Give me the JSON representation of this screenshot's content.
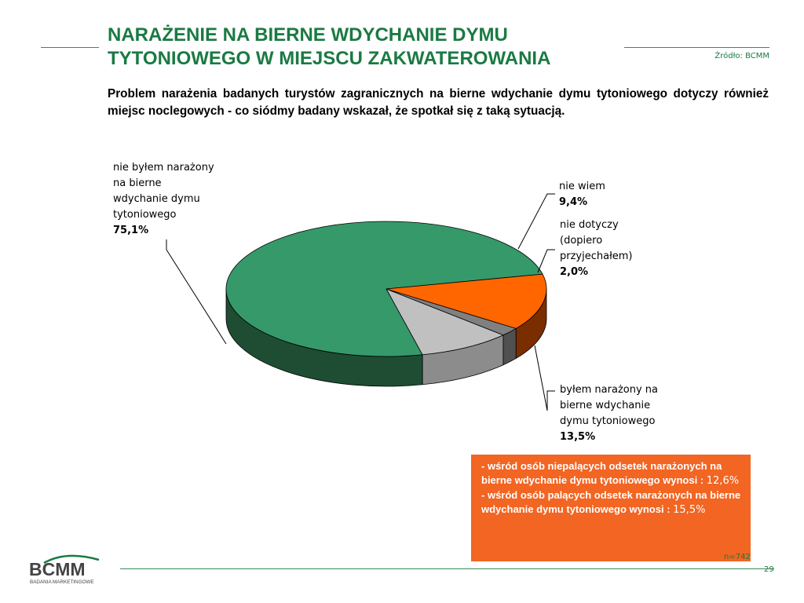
{
  "header": {
    "title_line1": "NARAŻENIE NA BIERNE WDYCHANIE DYMU",
    "title_line2": "TYTONIOWEGO W MIEJSCU ZAKWATEROWANIA",
    "source": "Źródło: BCMM",
    "subtitle": "Problem narażenia badanych turystów zagranicznych na bierne wdychanie dymu tytoniowego dotyczy również miejsc noclegowych - co siódmy badany wskazał, że spotkał się z taką sytuacją."
  },
  "chart_data": {
    "type": "pie",
    "style": "3d",
    "slices": [
      {
        "label": "nie byłem narażony\nna bierne\nwdychanie dymu\ntytoniowego",
        "value": 75.1,
        "value_label": "75,1%",
        "color": "#36996a",
        "side_color": "#1e4d33"
      },
      {
        "label": "nie wiem",
        "value": 9.4,
        "value_label": "9,4%",
        "color": "#c0c0c0",
        "side_color": "#8c8c8c"
      },
      {
        "label": "nie dotyczy\n(dopiero\nprzyjechałem)",
        "value": 2.0,
        "value_label": "2,0%",
        "color": "#808080",
        "side_color": "#505050"
      },
      {
        "label": "byłem narażony na\nbierne wdychanie\ndymu tytoniowego",
        "value": 13.5,
        "value_label": "13,5%",
        "color": "#ff6600",
        "side_color": "#7a2e00"
      }
    ]
  },
  "note": {
    "line1_prefix": "- ",
    "line1_text": "wśród osób niepalących odsetek narażonych na bierne wdychanie dymu tytoniowego wynosi : ",
    "line1_value": "12,6%",
    "line2_prefix": "- ",
    "line2_text": "wśród osób palących odsetek narażonych na bierne wdychanie dymu tytoniowego wynosi : ",
    "line2_value": "15,5%"
  },
  "footer": {
    "sample": "n=742",
    "page_number": "29",
    "logo_text": "BCMM",
    "logo_subtext": "BADANIA MARKETINGOWE"
  },
  "colors": {
    "brand_green": "#1a7a43",
    "note_bg": "#f26522"
  }
}
